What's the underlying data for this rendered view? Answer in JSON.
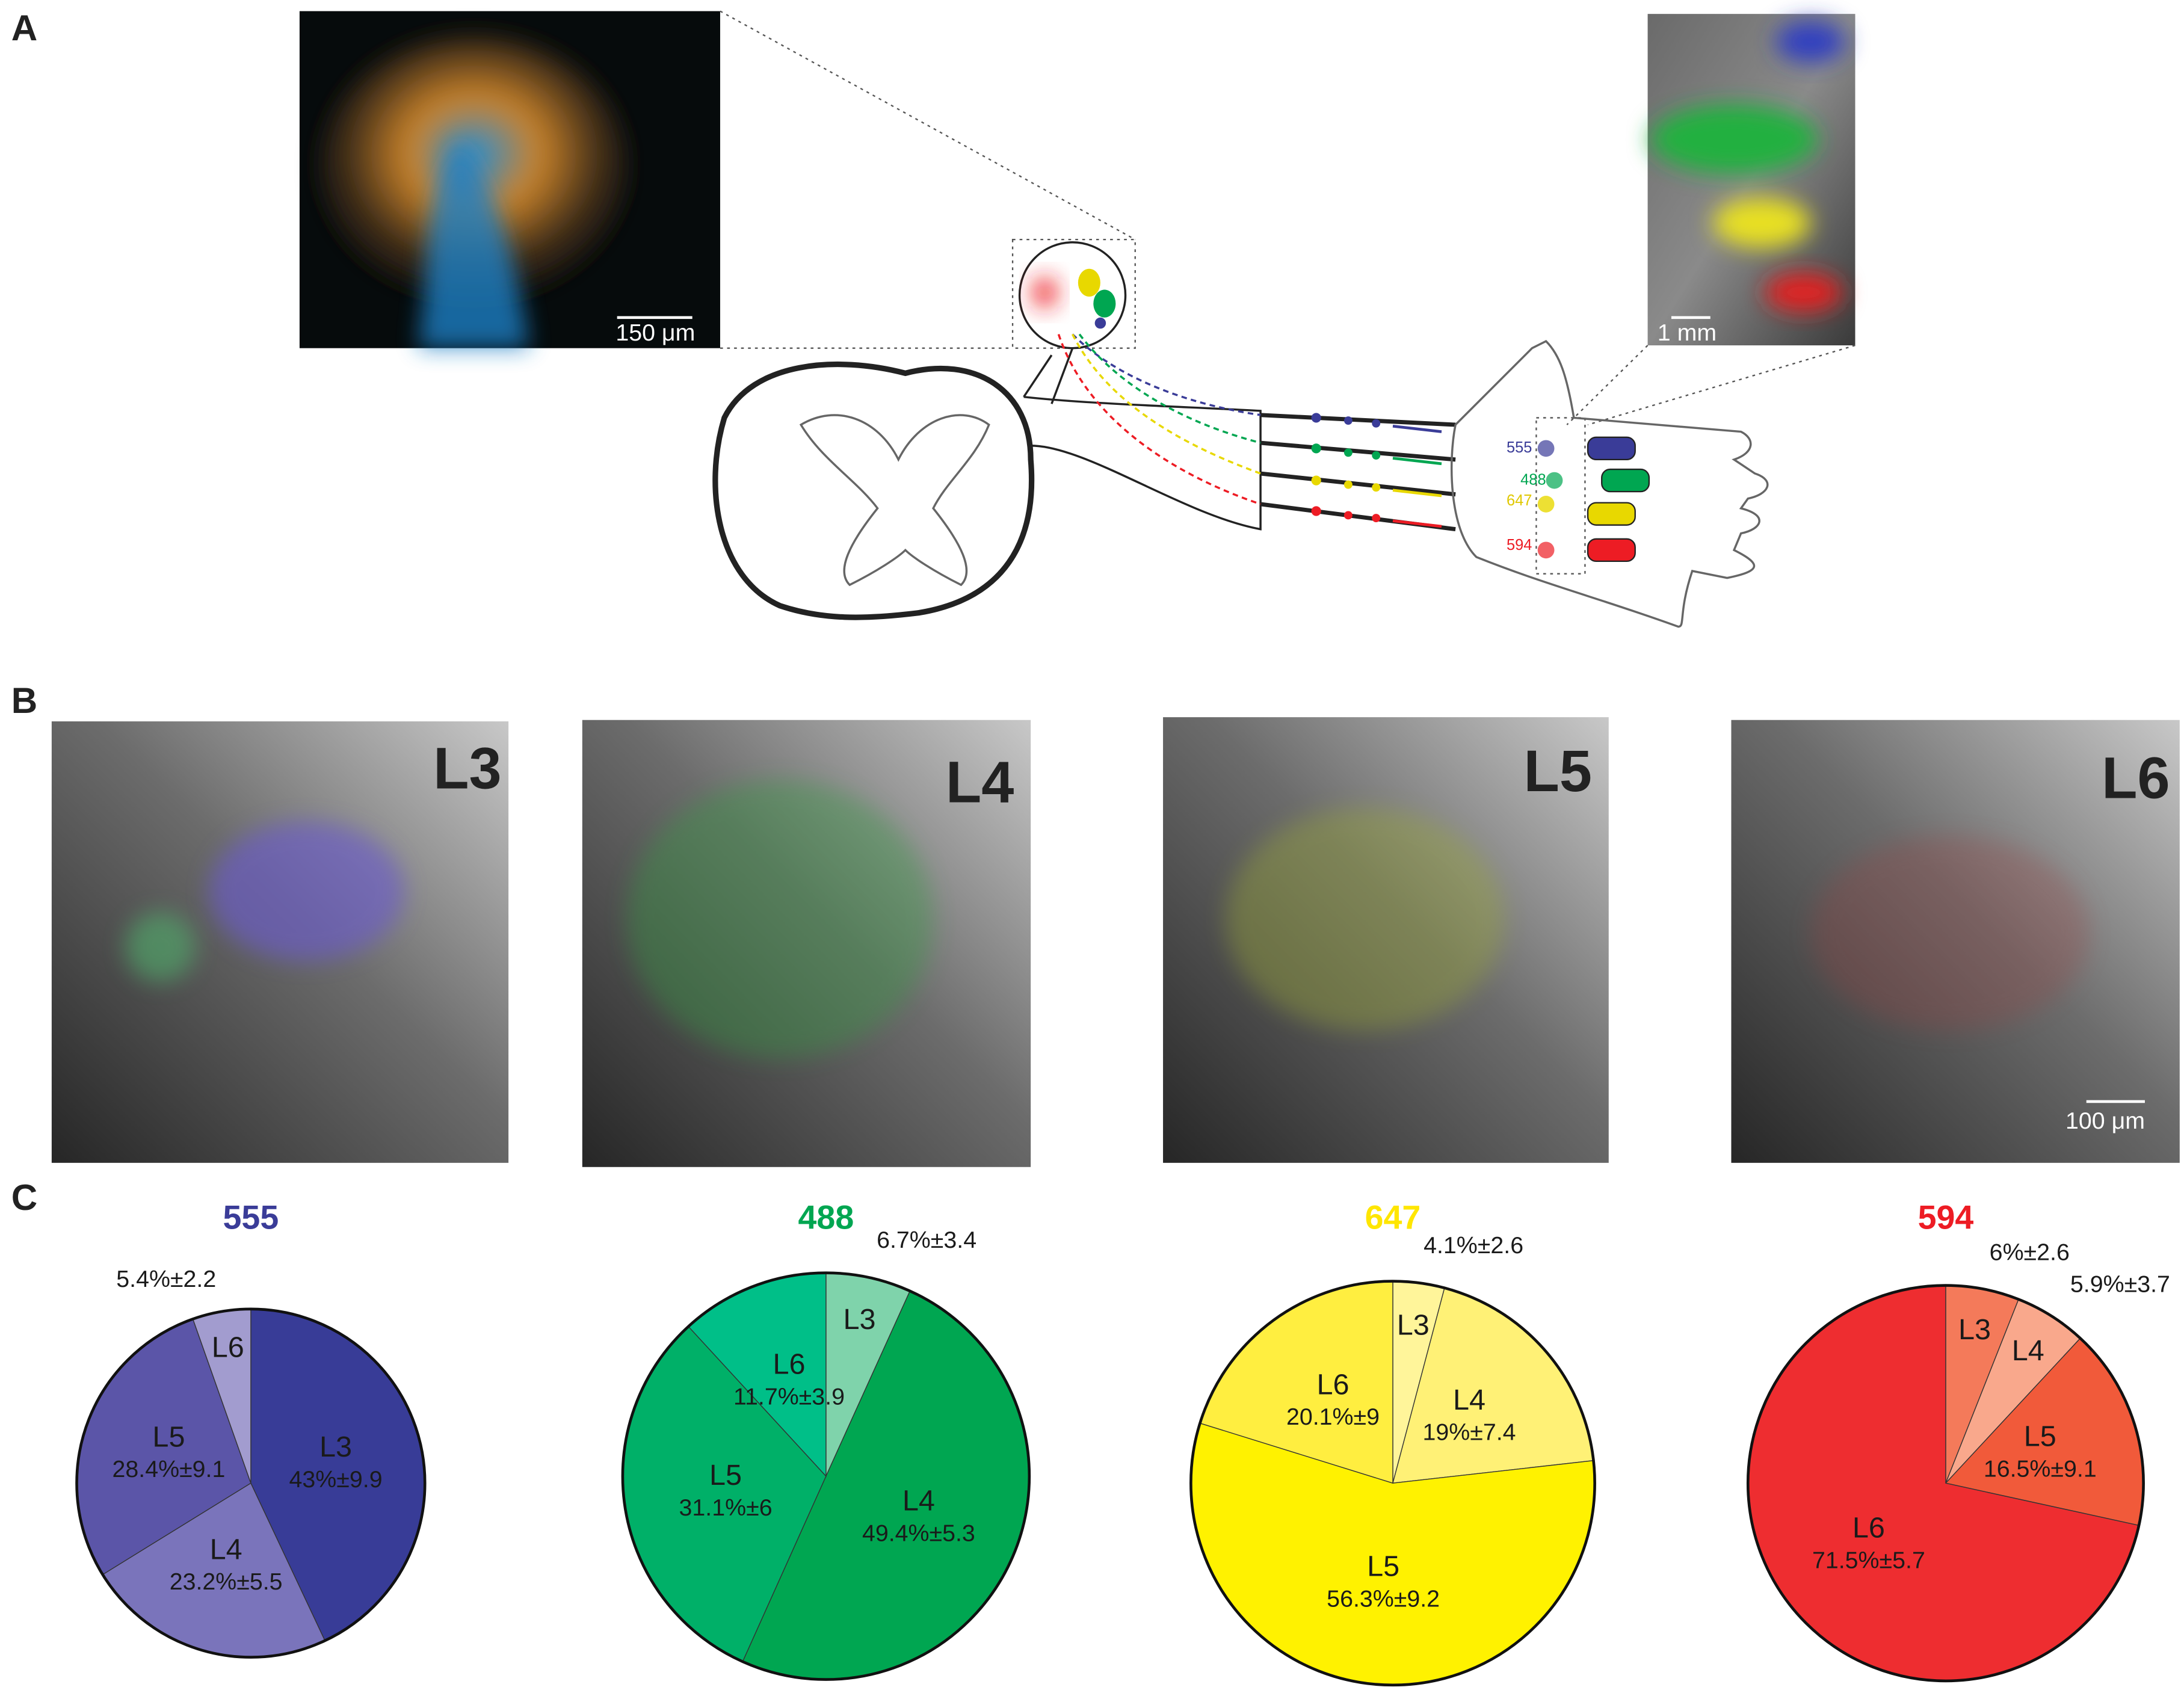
{
  "figure": {
    "panel_labels": [
      "A",
      "B",
      "C"
    ],
    "panel_a": {
      "scale_bars": [
        "150 μm",
        "1 mm"
      ],
      "dye_labels": [
        "555",
        "488",
        "647",
        "594"
      ]
    },
    "panel_b": {
      "levels": [
        "L3",
        "L4",
        "L5",
        "L6"
      ],
      "scale_bar": "100 μm"
    }
  },
  "chart_data": [
    {
      "type": "pie",
      "title": "555",
      "title_color": "#3a3c98",
      "categories": [
        "L3",
        "L4",
        "L5",
        "L6"
      ],
      "values": [
        43,
        23.2,
        28.4,
        5.4
      ],
      "value_labels": [
        "43%±9.9",
        "23.2%±5.5",
        "28.4%±9.1",
        "5.4%±2.2"
      ],
      "colors": [
        "#383c97",
        "#7a74bb",
        "#5b55a8",
        "#a29ccf"
      ]
    },
    {
      "type": "pie",
      "title": "488",
      "title_color": "#00a651",
      "categories": [
        "L3",
        "L4",
        "L5",
        "L6"
      ],
      "values": [
        6.7,
        49.4,
        31.1,
        11.7
      ],
      "value_labels": [
        "6.7%±3.4",
        "49.4%±5.3",
        "31.1%±6",
        "11.7%±3.9"
      ],
      "colors": [
        "#7fd3ab",
        "#00a651",
        "#00b068",
        "#00bf88"
      ]
    },
    {
      "type": "pie",
      "title": "647",
      "title_color": "#ffe600",
      "categories": [
        "L3",
        "L4",
        "L5",
        "L6"
      ],
      "values": [
        4.1,
        19,
        56.3,
        20.1
      ],
      "value_labels": [
        "4.1%±2.6",
        "19%±7.4",
        "56.3%±9.2",
        "20.1%±9"
      ],
      "colors": [
        "#fff59a",
        "#fff176",
        "#fff200",
        "#ffee40"
      ]
    },
    {
      "type": "pie",
      "title": "594",
      "title_color": "#ed1c24",
      "categories": [
        "L3",
        "L4",
        "L5",
        "L6"
      ],
      "values": [
        6,
        5.9,
        16.5,
        71.5
      ],
      "value_labels": [
        "6%±2.6",
        "5.9%±3.7",
        "16.5%±9.1",
        "71.5%±5.7"
      ],
      "colors": [
        "#f47a5a",
        "#f9a88c",
        "#f15a3a",
        "#ee2d30"
      ]
    }
  ]
}
